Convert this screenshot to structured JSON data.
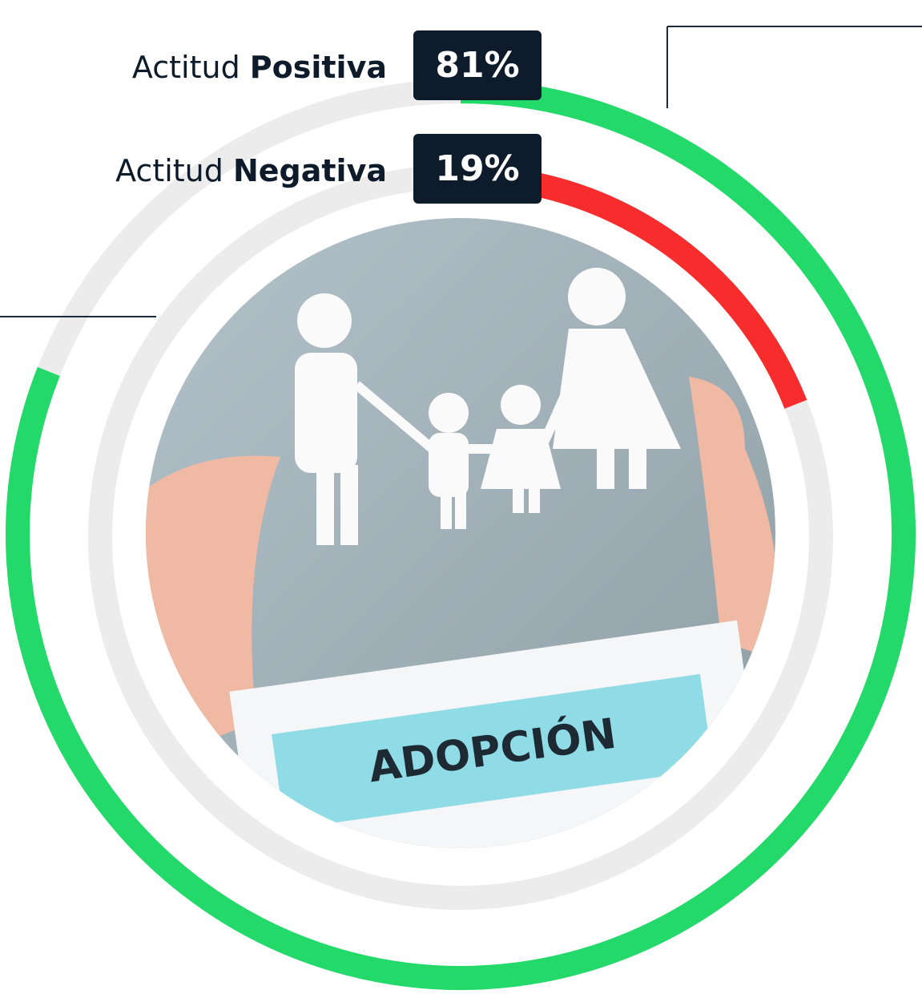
{
  "chart_data": {
    "type": "radial-bar",
    "series": [
      {
        "name": "Actitud Positiva",
        "color": "#22d96a",
        "values": [
          81
        ],
        "value_labels": [
          "81%"
        ]
      },
      {
        "name": "Actitud Negativa",
        "color": "#f72d2d",
        "values": [
          19
        ],
        "value_labels": [
          "19%"
        ]
      }
    ],
    "ylim": [
      0,
      100
    ],
    "track_color": "#ececec",
    "annotation": "ADOPCIÓN"
  }
}
